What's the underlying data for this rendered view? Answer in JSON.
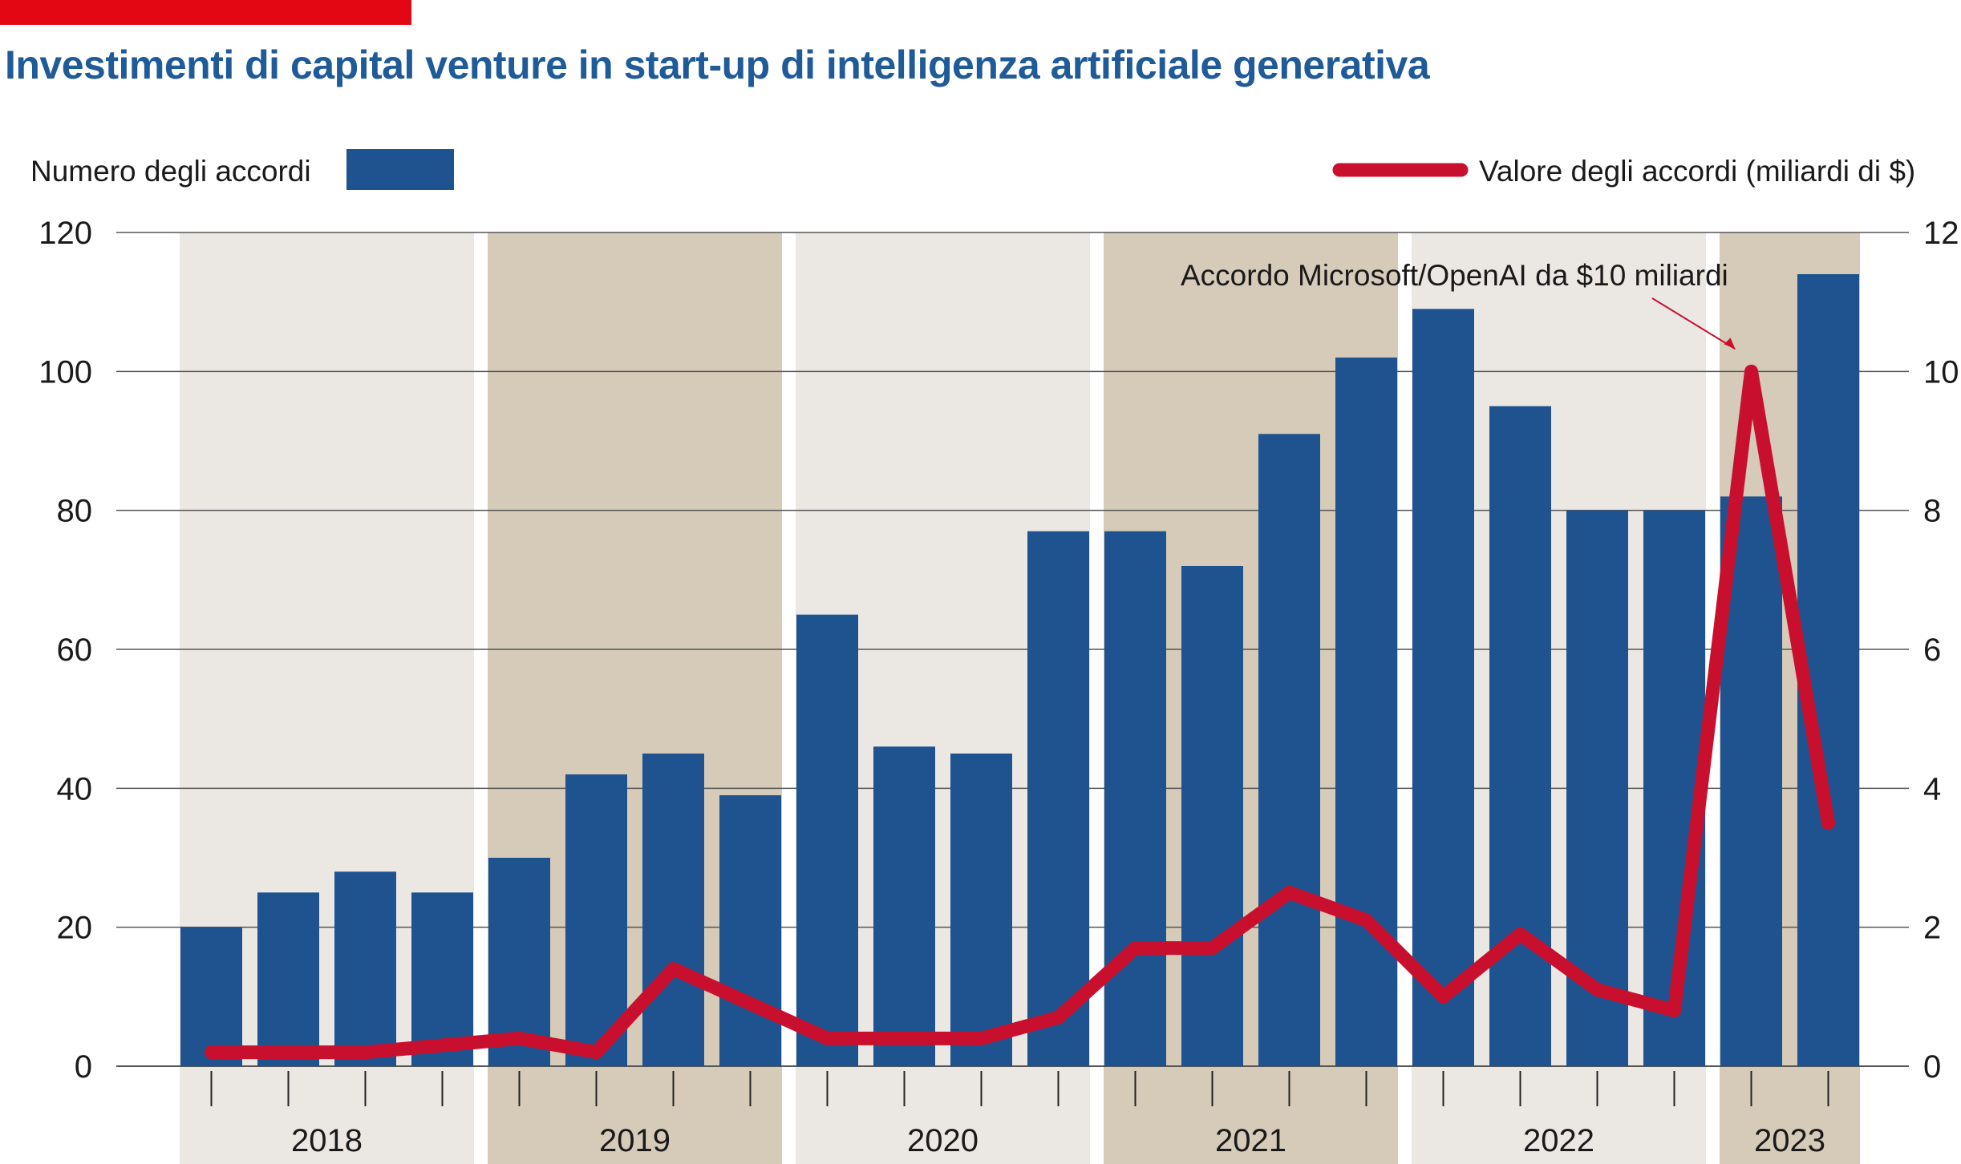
{
  "header": {
    "title": "Investimenti di capital venture in start-up di intelligenza artificiale generativa"
  },
  "colors": {
    "accent": "#e30613",
    "title": "#1f5a99",
    "bars": "#1f5390",
    "line": "#c8102e",
    "band_light": "#ebe8e4",
    "band_dark": "#d5cbb8",
    "grid": "#555555"
  },
  "chart_data": {
    "type": "bar",
    "title": "Investimenti di capital venture in start-up di intelligenza artificiale generativa",
    "legend": {
      "bars_label": "Numero degli accordi",
      "line_label": "Valore degli accordi (miliardi di $)",
      "placement": "top"
    },
    "years": [
      "2018",
      "2019",
      "2020",
      "2021",
      "2022",
      "2023"
    ],
    "quarters_per_year": [
      4,
      4,
      4,
      4,
      4,
      2
    ],
    "x": [
      "2018 Q1",
      "2018 Q2",
      "2018 Q3",
      "2018 Q4",
      "2019 Q1",
      "2019 Q2",
      "2019 Q3",
      "2019 Q4",
      "2020 Q1",
      "2020 Q2",
      "2020 Q3",
      "2020 Q4",
      "2021 Q1",
      "2021 Q2",
      "2021 Q3",
      "2021 Q4",
      "2022 Q1",
      "2022 Q2",
      "2022 Q3",
      "2022 Q4",
      "2023 Q1",
      "2023 Q2"
    ],
    "series": [
      {
        "name": "Numero degli accordi",
        "type": "bar",
        "axis": "left",
        "values": [
          20,
          25,
          28,
          25,
          30,
          42,
          45,
          39,
          65,
          46,
          45,
          77,
          77,
          72,
          91,
          102,
          109,
          95,
          80,
          80,
          82,
          114
        ]
      },
      {
        "name": "Valore degli accordi (miliardi di $)",
        "type": "line",
        "axis": "right",
        "values": [
          0.2,
          0.2,
          0.2,
          0.3,
          0.4,
          0.2,
          1.4,
          0.9,
          0.4,
          0.4,
          0.4,
          0.7,
          1.7,
          1.7,
          2.5,
          2.1,
          1.0,
          1.9,
          1.1,
          0.8,
          10.0,
          3.5
        ]
      }
    ],
    "y_left": {
      "ticks": [
        "0",
        "20",
        "40",
        "60",
        "80",
        "100",
        "120"
      ],
      "ylim": [
        0,
        120
      ]
    },
    "y_right": {
      "ticks": [
        "0",
        "2",
        "4",
        "6",
        "8",
        "10",
        "12"
      ],
      "ylim": [
        0,
        12
      ]
    },
    "annotation": {
      "text": "Accordo Microsoft/OpenAI da $10 miliardi",
      "point_index": 20
    },
    "grid": true
  }
}
